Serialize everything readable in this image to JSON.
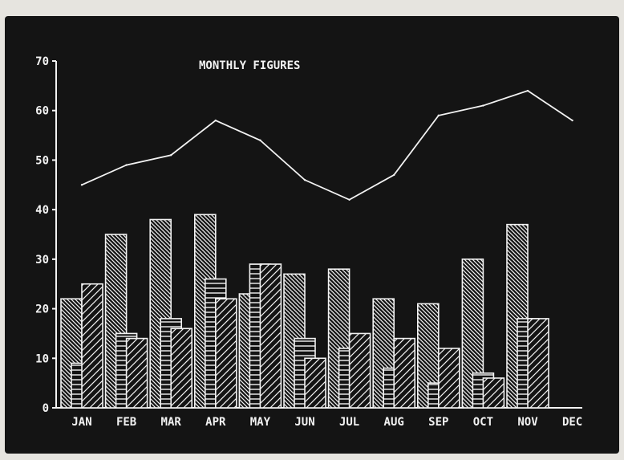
{
  "chart_data": {
    "type": "bar",
    "title": "MONTHLY FIGURES",
    "categories": [
      "JAN",
      "FEB",
      "MAR",
      "APR",
      "MAY",
      "JUN",
      "JUL",
      "AUG",
      "SEP",
      "OCT",
      "NOV",
      "DEC"
    ],
    "series": [
      {
        "kind": "bar",
        "pattern": "diagonal-left",
        "values": [
          22,
          35,
          38,
          39,
          23,
          27,
          28,
          22,
          21,
          30,
          37,
          null
        ]
      },
      {
        "kind": "bar",
        "pattern": "horizontal",
        "values": [
          9,
          15,
          18,
          26,
          29,
          14,
          12,
          8,
          5,
          7,
          18,
          null
        ]
      },
      {
        "kind": "bar",
        "pattern": "diagonal-right",
        "values": [
          25,
          14,
          16,
          22,
          29,
          10,
          15,
          14,
          12,
          6,
          18,
          null
        ]
      },
      {
        "kind": "line",
        "values": [
          45,
          49,
          51,
          58,
          54,
          46,
          42,
          47,
          59,
          61,
          64,
          58
        ]
      }
    ],
    "yticks": [
      0,
      10,
      20,
      30,
      40,
      50,
      60,
      70
    ],
    "ytick_labels": [
      "0",
      "10",
      "20",
      "30",
      "40",
      "50",
      "60",
      "70"
    ],
    "ylim": [
      0,
      70
    ],
    "xlabel": "",
    "ylabel": "",
    "grid": false,
    "colors": {
      "background": "#141414",
      "foreground": "#f2f2f2"
    }
  }
}
